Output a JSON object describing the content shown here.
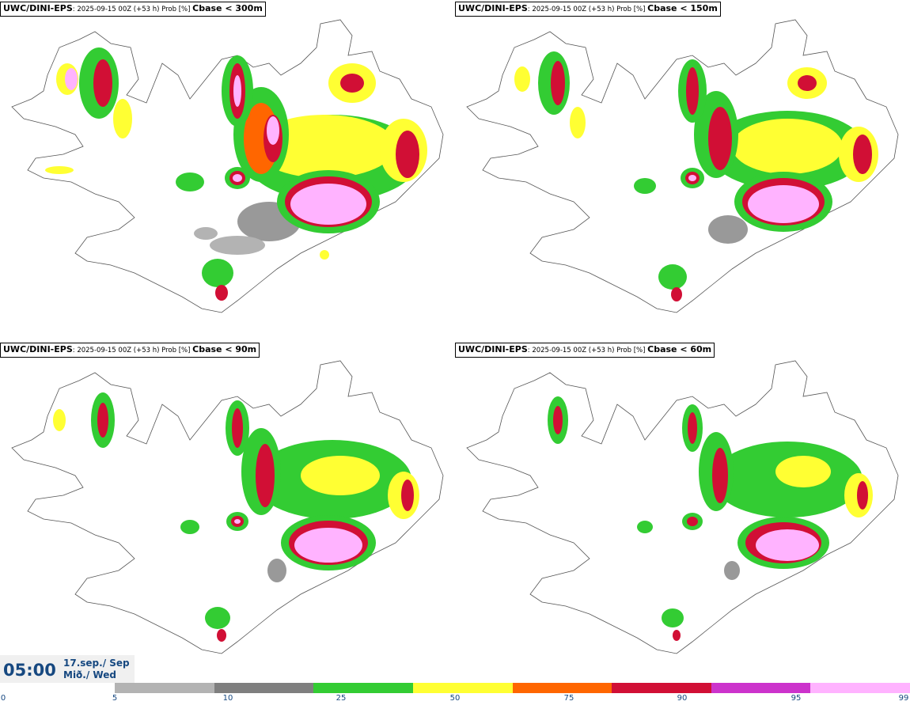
{
  "panels": [
    {
      "model": "UWC/DINI-EPS",
      "meta": ": 2025-09-15 00Z (+53 h) Prob [%] ",
      "condition": "Cbase < 300m"
    },
    {
      "model": "UWC/DINI-EPS",
      "meta": ": 2025-09-15 00Z (+53 h) Prob [%] ",
      "condition": "Cbase < 150m"
    },
    {
      "model": "UWC/DINI-EPS",
      "meta": ": 2025-09-15 00Z (+53 h) Prob [%] ",
      "condition": "Cbase < 90m"
    },
    {
      "model": "UWC/DINI-EPS",
      "meta": ": 2025-09-15 00Z (+53 h) Prob [%] ",
      "condition": "Cbase < 60m"
    }
  ],
  "valid_time": {
    "time": "05:00",
    "date": "17.sep./ Sep",
    "day": "Mið./ Wed"
  },
  "colorbar": {
    "ticks": [
      "0",
      "5",
      "10",
      "25",
      "50",
      "75",
      "90",
      "95",
      "99"
    ],
    "bins": [
      {
        "from": 5,
        "to": 10,
        "color": "#b3b3b3"
      },
      {
        "from": 10,
        "to": 25,
        "color": "#7f7f7f"
      },
      {
        "from": 25,
        "to": 50,
        "color": "#33cc33"
      },
      {
        "from": 50,
        "to": 75,
        "color": "#ffff33"
      },
      {
        "from": 75,
        "to": 90,
        "color": "#ff6600"
      },
      {
        "from": 90,
        "to": 95,
        "color": "#d10f35"
      },
      {
        "from": 95,
        "to": 99,
        "color": "#cc33cc"
      },
      {
        "from": 99,
        "to": 100,
        "color": "#ffb3ff"
      }
    ]
  }
}
